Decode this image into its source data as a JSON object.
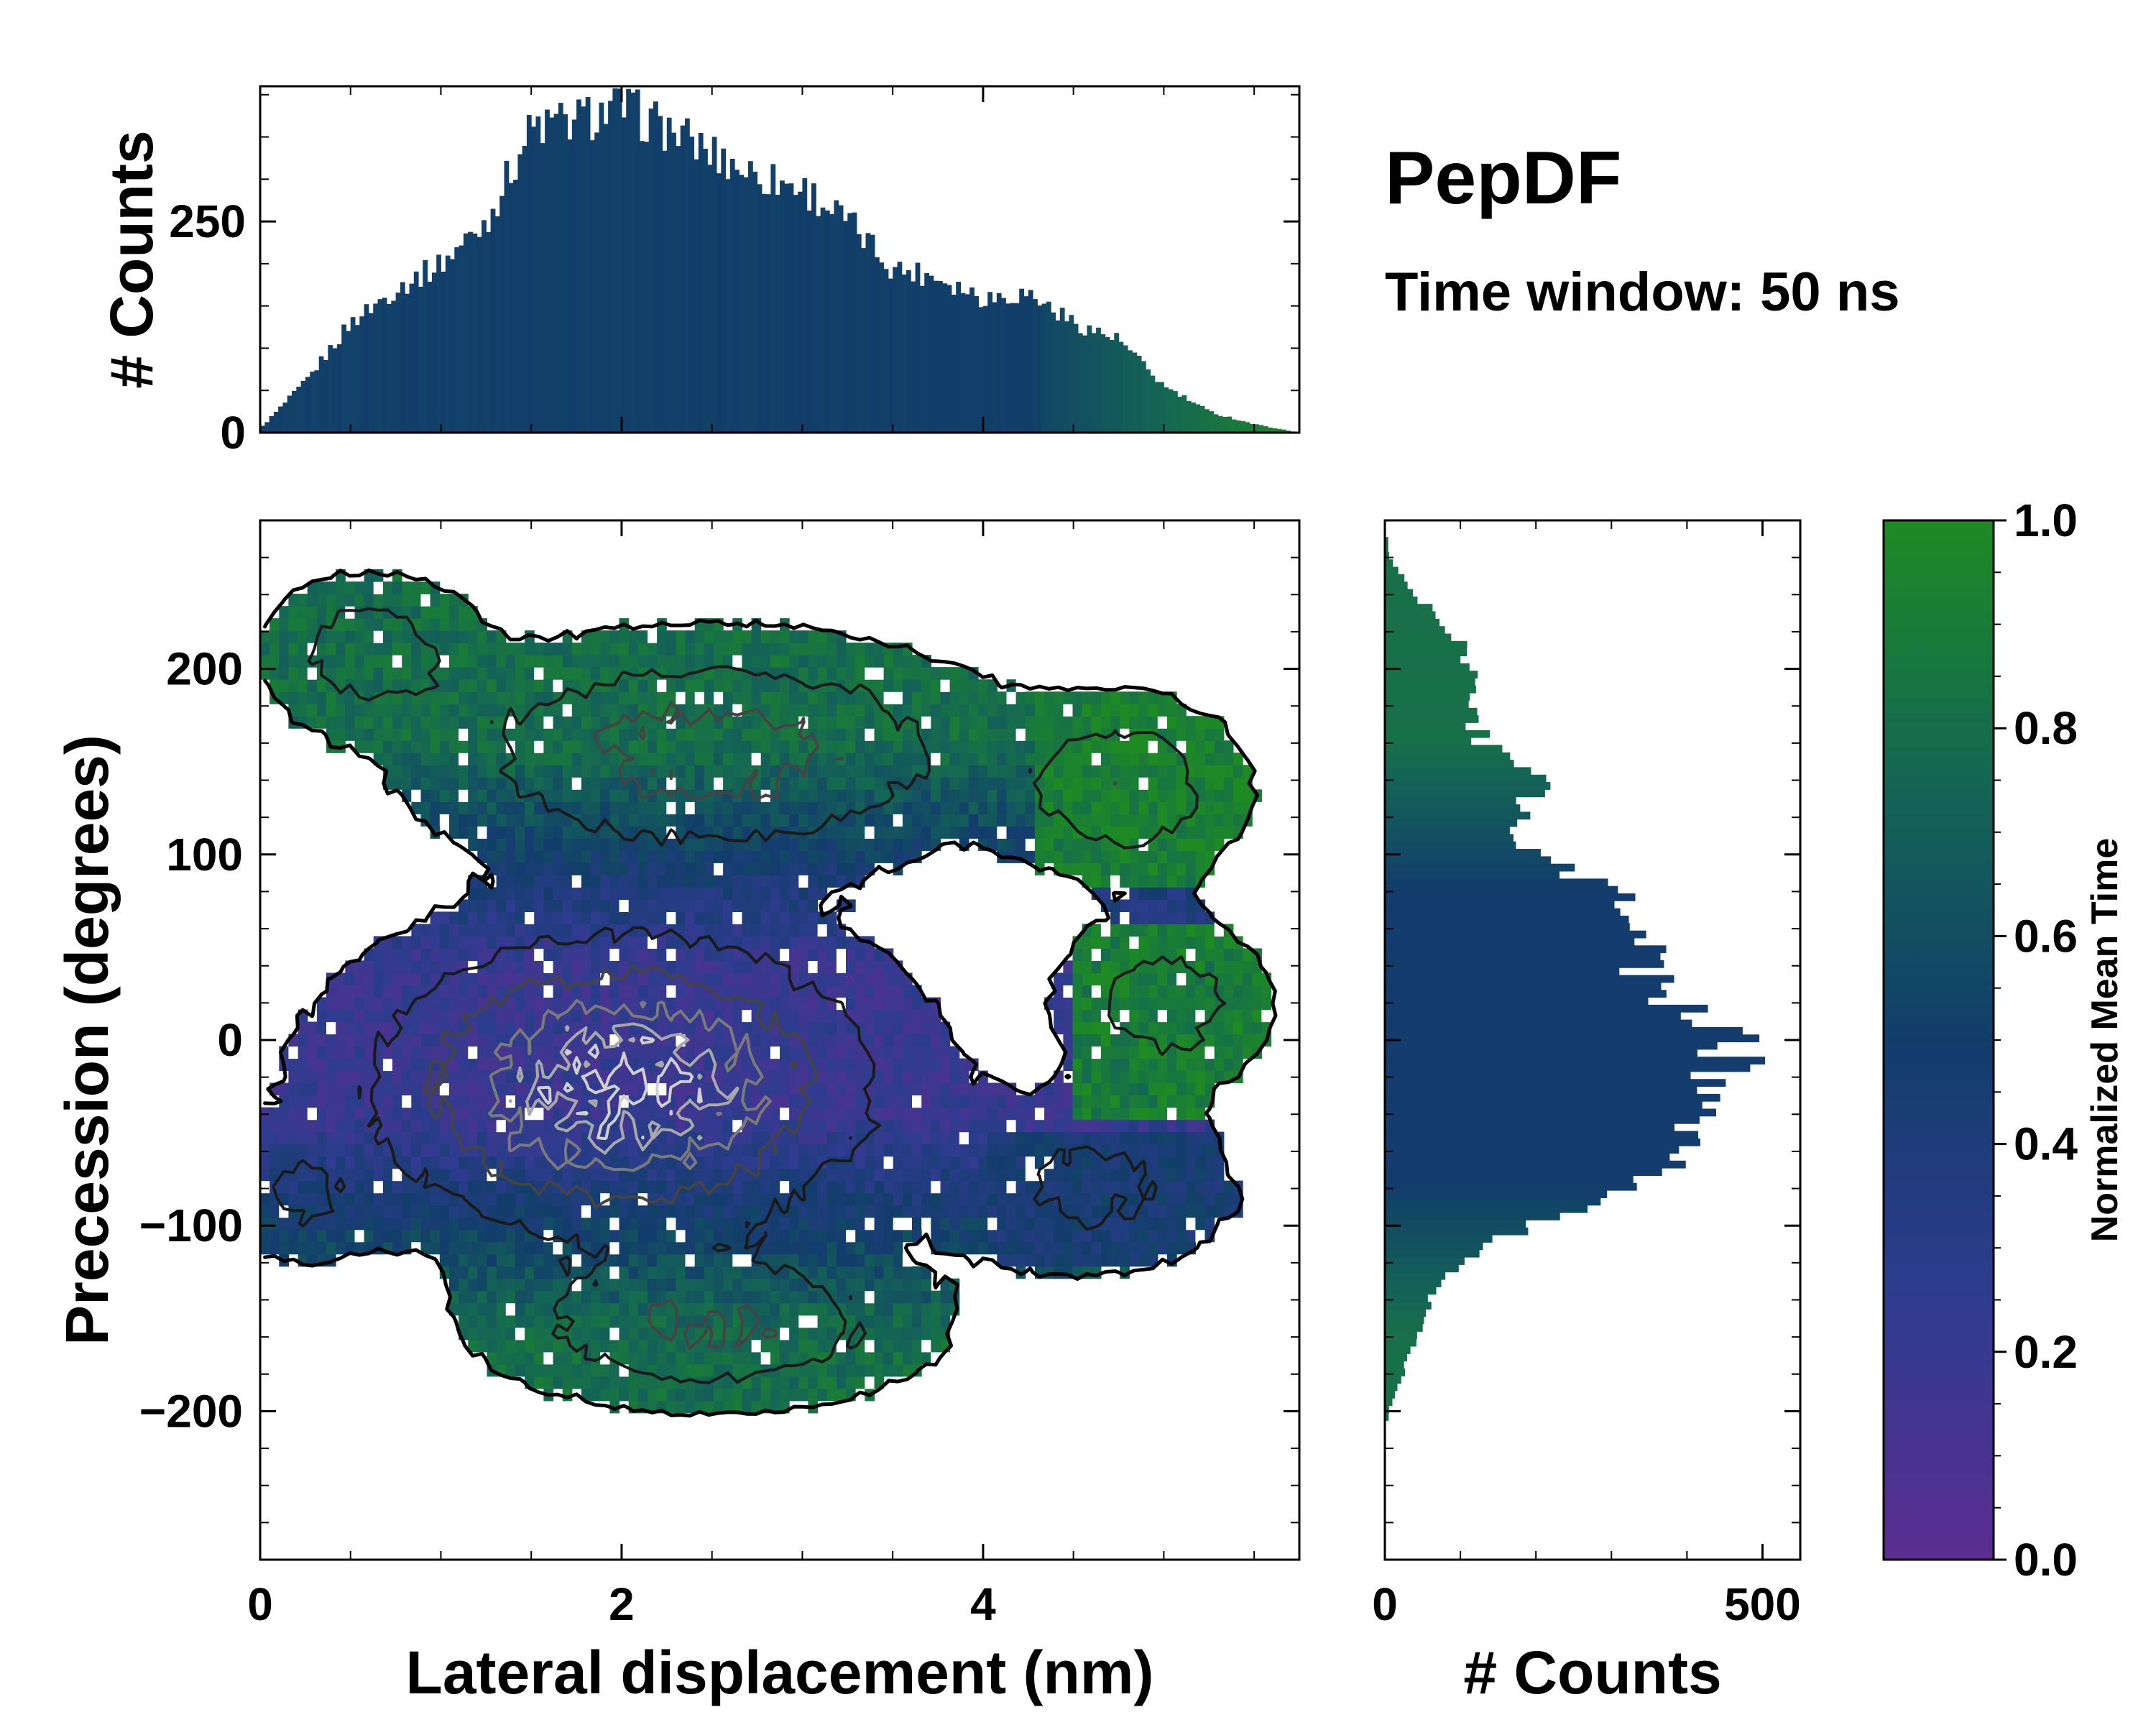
{
  "chart_data": {
    "type": "heatmap",
    "title": "PepDF",
    "subtitle": "Time window: 50 ns",
    "colors": {
      "low": "#5b2d91",
      "mid": "#123d6b",
      "high": "#1e8a24",
      "contour_dark": "#1a1a1a",
      "contour_light": "#cfcfcf",
      "empty": "#ffffff"
    },
    "main": {
      "xlabel": "Lateral displacement (nm)",
      "ylabel": "Precession (degrees)",
      "xlim": [
        0,
        5.75
      ],
      "ylim": [
        -280,
        280
      ],
      "xticks": [
        0,
        2,
        4
      ],
      "xtick_labels": [
        "0",
        "2",
        "4"
      ],
      "yticks": [
        -200,
        -100,
        0,
        100,
        200
      ],
      "ytick_labels": [
        "−200",
        "−100",
        "0",
        "100",
        "200"
      ],
      "color_regions": [
        {
          "region": "upper band, precession 150 to 260 deg",
          "normalized_mean_time": 0.75
        },
        {
          "region": "upper-right lobe, displacement 4-5.5 nm, precession 100 to 180 deg",
          "normalized_mean_time": 0.95
        },
        {
          "region": "core, precession -80 to 80 deg",
          "normalized_mean_time": 0.35
        },
        {
          "region": "right lobe, displacement 4.5-5.6 nm, precession -30 to 40 deg",
          "normalized_mean_time": 0.9
        },
        {
          "region": "lower band, precession -210 to -120 deg",
          "normalized_mean_time": 0.8
        }
      ],
      "density_peak": {
        "lateral_displacement_nm": 2.0,
        "precession_deg": -30
      }
    },
    "top_histogram": {
      "ylabel": "# Counts",
      "xlim": [
        0,
        5.75
      ],
      "ylim": [
        0,
        410
      ],
      "yticks": [
        0,
        250
      ],
      "ytick_labels": [
        "0",
        "250"
      ],
      "bin_width_nm": 0.025,
      "bins_x_nm": [
        0.0,
        0.25,
        0.5,
        0.75,
        1.0,
        1.25,
        1.5,
        1.75,
        2.0,
        2.25,
        2.5,
        2.75,
        3.0,
        3.25,
        3.5,
        3.75,
        4.0,
        4.25,
        4.5,
        4.75,
        5.0,
        5.25,
        5.5,
        5.75
      ],
      "counts": [
        5,
        60,
        130,
        170,
        200,
        250,
        360,
        370,
        385,
        360,
        330,
        305,
        290,
        250,
        195,
        185,
        160,
        165,
        130,
        110,
        55,
        25,
        10,
        0
      ]
    },
    "right_histogram": {
      "xlabel": "# Counts",
      "xlim": [
        0,
        550
      ],
      "xticks": [
        0,
        500
      ],
      "xtick_labels": [
        "0",
        "500"
      ],
      "ylim": [
        -280,
        280
      ],
      "bins_y_deg": [
        -200,
        -180,
        -160,
        -140,
        -120,
        -100,
        -80,
        -60,
        -40,
        -20,
        0,
        20,
        40,
        60,
        80,
        100,
        120,
        140,
        160,
        180,
        200,
        220,
        240,
        260
      ],
      "counts": [
        5,
        25,
        40,
        60,
        95,
        190,
        320,
        375,
        420,
        430,
        490,
        380,
        345,
        330,
        300,
        190,
        185,
        200,
        130,
        110,
        120,
        90,
        40,
        5
      ]
    },
    "colorbar": {
      "label": "Normalized Mean Time",
      "range": [
        0,
        1
      ],
      "ticks": [
        0.0,
        0.2,
        0.4,
        0.6,
        0.8,
        1.0
      ],
      "tick_labels": [
        "0.0",
        "0.2",
        "0.4",
        "0.6",
        "0.8",
        "1.0"
      ]
    }
  }
}
